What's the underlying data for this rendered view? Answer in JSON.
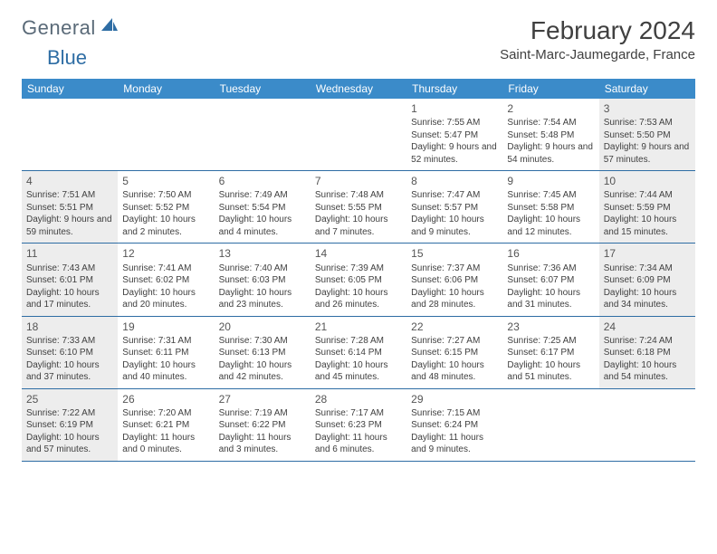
{
  "logo": {
    "general": "General",
    "blue": "Blue"
  },
  "title": "February 2024",
  "location": "Saint-Marc-Jaumegarde, France",
  "colors": {
    "header_bg": "#3b8bc9",
    "header_text": "#ffffff",
    "border": "#2e6da4",
    "shaded": "#ededed",
    "text": "#404040"
  },
  "day_names": [
    "Sunday",
    "Monday",
    "Tuesday",
    "Wednesday",
    "Thursday",
    "Friday",
    "Saturday"
  ],
  "weeks": [
    [
      {
        "day": "",
        "sunrise": "",
        "sunset": "",
        "daylight": "",
        "shaded": false
      },
      {
        "day": "",
        "sunrise": "",
        "sunset": "",
        "daylight": "",
        "shaded": false
      },
      {
        "day": "",
        "sunrise": "",
        "sunset": "",
        "daylight": "",
        "shaded": false
      },
      {
        "day": "",
        "sunrise": "",
        "sunset": "",
        "daylight": "",
        "shaded": false
      },
      {
        "day": "1",
        "sunrise": "Sunrise: 7:55 AM",
        "sunset": "Sunset: 5:47 PM",
        "daylight": "Daylight: 9 hours and 52 minutes.",
        "shaded": false
      },
      {
        "day": "2",
        "sunrise": "Sunrise: 7:54 AM",
        "sunset": "Sunset: 5:48 PM",
        "daylight": "Daylight: 9 hours and 54 minutes.",
        "shaded": false
      },
      {
        "day": "3",
        "sunrise": "Sunrise: 7:53 AM",
        "sunset": "Sunset: 5:50 PM",
        "daylight": "Daylight: 9 hours and 57 minutes.",
        "shaded": true
      }
    ],
    [
      {
        "day": "4",
        "sunrise": "Sunrise: 7:51 AM",
        "sunset": "Sunset: 5:51 PM",
        "daylight": "Daylight: 9 hours and 59 minutes.",
        "shaded": true
      },
      {
        "day": "5",
        "sunrise": "Sunrise: 7:50 AM",
        "sunset": "Sunset: 5:52 PM",
        "daylight": "Daylight: 10 hours and 2 minutes.",
        "shaded": false
      },
      {
        "day": "6",
        "sunrise": "Sunrise: 7:49 AM",
        "sunset": "Sunset: 5:54 PM",
        "daylight": "Daylight: 10 hours and 4 minutes.",
        "shaded": false
      },
      {
        "day": "7",
        "sunrise": "Sunrise: 7:48 AM",
        "sunset": "Sunset: 5:55 PM",
        "daylight": "Daylight: 10 hours and 7 minutes.",
        "shaded": false
      },
      {
        "day": "8",
        "sunrise": "Sunrise: 7:47 AM",
        "sunset": "Sunset: 5:57 PM",
        "daylight": "Daylight: 10 hours and 9 minutes.",
        "shaded": false
      },
      {
        "day": "9",
        "sunrise": "Sunrise: 7:45 AM",
        "sunset": "Sunset: 5:58 PM",
        "daylight": "Daylight: 10 hours and 12 minutes.",
        "shaded": false
      },
      {
        "day": "10",
        "sunrise": "Sunrise: 7:44 AM",
        "sunset": "Sunset: 5:59 PM",
        "daylight": "Daylight: 10 hours and 15 minutes.",
        "shaded": true
      }
    ],
    [
      {
        "day": "11",
        "sunrise": "Sunrise: 7:43 AM",
        "sunset": "Sunset: 6:01 PM",
        "daylight": "Daylight: 10 hours and 17 minutes.",
        "shaded": true
      },
      {
        "day": "12",
        "sunrise": "Sunrise: 7:41 AM",
        "sunset": "Sunset: 6:02 PM",
        "daylight": "Daylight: 10 hours and 20 minutes.",
        "shaded": false
      },
      {
        "day": "13",
        "sunrise": "Sunrise: 7:40 AM",
        "sunset": "Sunset: 6:03 PM",
        "daylight": "Daylight: 10 hours and 23 minutes.",
        "shaded": false
      },
      {
        "day": "14",
        "sunrise": "Sunrise: 7:39 AM",
        "sunset": "Sunset: 6:05 PM",
        "daylight": "Daylight: 10 hours and 26 minutes.",
        "shaded": false
      },
      {
        "day": "15",
        "sunrise": "Sunrise: 7:37 AM",
        "sunset": "Sunset: 6:06 PM",
        "daylight": "Daylight: 10 hours and 28 minutes.",
        "shaded": false
      },
      {
        "day": "16",
        "sunrise": "Sunrise: 7:36 AM",
        "sunset": "Sunset: 6:07 PM",
        "daylight": "Daylight: 10 hours and 31 minutes.",
        "shaded": false
      },
      {
        "day": "17",
        "sunrise": "Sunrise: 7:34 AM",
        "sunset": "Sunset: 6:09 PM",
        "daylight": "Daylight: 10 hours and 34 minutes.",
        "shaded": true
      }
    ],
    [
      {
        "day": "18",
        "sunrise": "Sunrise: 7:33 AM",
        "sunset": "Sunset: 6:10 PM",
        "daylight": "Daylight: 10 hours and 37 minutes.",
        "shaded": true
      },
      {
        "day": "19",
        "sunrise": "Sunrise: 7:31 AM",
        "sunset": "Sunset: 6:11 PM",
        "daylight": "Daylight: 10 hours and 40 minutes.",
        "shaded": false
      },
      {
        "day": "20",
        "sunrise": "Sunrise: 7:30 AM",
        "sunset": "Sunset: 6:13 PM",
        "daylight": "Daylight: 10 hours and 42 minutes.",
        "shaded": false
      },
      {
        "day": "21",
        "sunrise": "Sunrise: 7:28 AM",
        "sunset": "Sunset: 6:14 PM",
        "daylight": "Daylight: 10 hours and 45 minutes.",
        "shaded": false
      },
      {
        "day": "22",
        "sunrise": "Sunrise: 7:27 AM",
        "sunset": "Sunset: 6:15 PM",
        "daylight": "Daylight: 10 hours and 48 minutes.",
        "shaded": false
      },
      {
        "day": "23",
        "sunrise": "Sunrise: 7:25 AM",
        "sunset": "Sunset: 6:17 PM",
        "daylight": "Daylight: 10 hours and 51 minutes.",
        "shaded": false
      },
      {
        "day": "24",
        "sunrise": "Sunrise: 7:24 AM",
        "sunset": "Sunset: 6:18 PM",
        "daylight": "Daylight: 10 hours and 54 minutes.",
        "shaded": true
      }
    ],
    [
      {
        "day": "25",
        "sunrise": "Sunrise: 7:22 AM",
        "sunset": "Sunset: 6:19 PM",
        "daylight": "Daylight: 10 hours and 57 minutes.",
        "shaded": true
      },
      {
        "day": "26",
        "sunrise": "Sunrise: 7:20 AM",
        "sunset": "Sunset: 6:21 PM",
        "daylight": "Daylight: 11 hours and 0 minutes.",
        "shaded": false
      },
      {
        "day": "27",
        "sunrise": "Sunrise: 7:19 AM",
        "sunset": "Sunset: 6:22 PM",
        "daylight": "Daylight: 11 hours and 3 minutes.",
        "shaded": false
      },
      {
        "day": "28",
        "sunrise": "Sunrise: 7:17 AM",
        "sunset": "Sunset: 6:23 PM",
        "daylight": "Daylight: 11 hours and 6 minutes.",
        "shaded": false
      },
      {
        "day": "29",
        "sunrise": "Sunrise: 7:15 AM",
        "sunset": "Sunset: 6:24 PM",
        "daylight": "Daylight: 11 hours and 9 minutes.",
        "shaded": false
      },
      {
        "day": "",
        "sunrise": "",
        "sunset": "",
        "daylight": "",
        "shaded": false
      },
      {
        "day": "",
        "sunrise": "",
        "sunset": "",
        "daylight": "",
        "shaded": false
      }
    ]
  ]
}
